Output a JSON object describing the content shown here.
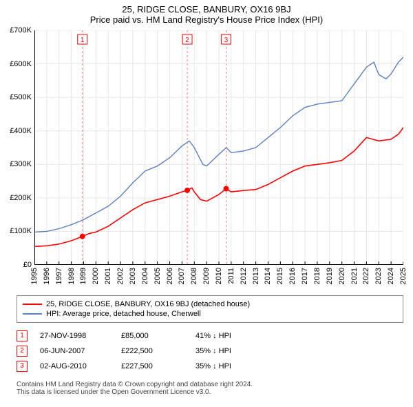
{
  "title_line1": "25, RIDGE CLOSE, BANBURY, OX16 9BJ",
  "title_line2": "Price paid vs. HM Land Registry's House Price Index (HPI)",
  "chart": {
    "type": "line",
    "x_years": [
      1995,
      1996,
      1997,
      1998,
      1999,
      2000,
      2001,
      2002,
      2003,
      2004,
      2005,
      2006,
      2007,
      2008,
      2009,
      2010,
      2011,
      2012,
      2013,
      2014,
      2015,
      2016,
      2017,
      2018,
      2019,
      2020,
      2021,
      2022,
      2023,
      2024,
      2025
    ],
    "ylim": [
      0,
      700000
    ],
    "ytick_step": 100000,
    "ytick_labels": [
      "£0",
      "£100K",
      "£200K",
      "£300K",
      "£400K",
      "£500K",
      "£600K",
      "£700K"
    ],
    "background_color": "#ffffff",
    "grid_color": "#e6e6e6",
    "axis_color": "#000000",
    "series": [
      {
        "name": "redline",
        "legend": "25, RIDGE CLOSE, BANBURY, OX16 9BJ (detached house)",
        "color": "#ff0000",
        "line_width": 1.6,
        "points": [
          [
            1995,
            55000
          ],
          [
            1996,
            57000
          ],
          [
            1997,
            62000
          ],
          [
            1998,
            72000
          ],
          [
            1998.9,
            85000
          ],
          [
            1999.5,
            94000
          ],
          [
            2000,
            98000
          ],
          [
            2001,
            115000
          ],
          [
            2002,
            140000
          ],
          [
            2003,
            165000
          ],
          [
            2004,
            185000
          ],
          [
            2005,
            195000
          ],
          [
            2006,
            205000
          ],
          [
            2007,
            218000
          ],
          [
            2007.43,
            222500
          ],
          [
            2007.8,
            230000
          ],
          [
            2008,
            218000
          ],
          [
            2008.5,
            195000
          ],
          [
            2009,
            190000
          ],
          [
            2010,
            210000
          ],
          [
            2010.59,
            227500
          ],
          [
            2011,
            218000
          ],
          [
            2012,
            222000
          ],
          [
            2013,
            225000
          ],
          [
            2014,
            240000
          ],
          [
            2015,
            260000
          ],
          [
            2016,
            280000
          ],
          [
            2017,
            295000
          ],
          [
            2018,
            300000
          ],
          [
            2019,
            305000
          ],
          [
            2020,
            312000
          ],
          [
            2021,
            340000
          ],
          [
            2022,
            380000
          ],
          [
            2023,
            370000
          ],
          [
            2024,
            375000
          ],
          [
            2024.6,
            390000
          ],
          [
            2025,
            410000
          ]
        ]
      },
      {
        "name": "blueline",
        "legend": "HPI: Average price, detached house, Cherwell",
        "color": "#5b7fc7",
        "line_width": 1.4,
        "points": [
          [
            1995,
            98000
          ],
          [
            1996,
            100000
          ],
          [
            1997,
            108000
          ],
          [
            1998,
            120000
          ],
          [
            1999,
            135000
          ],
          [
            2000,
            155000
          ],
          [
            2001,
            175000
          ],
          [
            2002,
            205000
          ],
          [
            2003,
            245000
          ],
          [
            2004,
            280000
          ],
          [
            2005,
            295000
          ],
          [
            2006,
            320000
          ],
          [
            2007,
            355000
          ],
          [
            2007.6,
            370000
          ],
          [
            2008,
            350000
          ],
          [
            2008.7,
            300000
          ],
          [
            2009,
            295000
          ],
          [
            2010,
            330000
          ],
          [
            2010.6,
            350000
          ],
          [
            2011,
            335000
          ],
          [
            2012,
            340000
          ],
          [
            2013,
            350000
          ],
          [
            2014,
            380000
          ],
          [
            2015,
            410000
          ],
          [
            2016,
            445000
          ],
          [
            2017,
            470000
          ],
          [
            2018,
            480000
          ],
          [
            2019,
            485000
          ],
          [
            2020,
            490000
          ],
          [
            2021,
            540000
          ],
          [
            2022,
            590000
          ],
          [
            2022.6,
            605000
          ],
          [
            2023,
            568000
          ],
          [
            2023.6,
            555000
          ],
          [
            2024,
            570000
          ],
          [
            2024.6,
            605000
          ],
          [
            2025,
            620000
          ]
        ]
      }
    ],
    "sale_markers": [
      {
        "num": "1",
        "x": 1998.9,
        "y": 85000
      },
      {
        "num": "2",
        "x": 2007.43,
        "y": 222500
      },
      {
        "num": "3",
        "x": 2010.59,
        "y": 227500
      }
    ],
    "marker_line_color": "#f07f7f"
  },
  "events": [
    {
      "num": "1",
      "date": "27-NOV-1998",
      "price": "£85,000",
      "delta": "41% ↓ HPI"
    },
    {
      "num": "2",
      "date": "06-JUN-2007",
      "price": "£222,500",
      "delta": "35% ↓ HPI"
    },
    {
      "num": "3",
      "date": "02-AUG-2010",
      "price": "£227,500",
      "delta": "35% ↓ HPI"
    }
  ],
  "footer_line1": "Contains HM Land Registry data © Crown copyright and database right 2024.",
  "footer_line2": "This data is licensed under the Open Government Licence v3.0."
}
